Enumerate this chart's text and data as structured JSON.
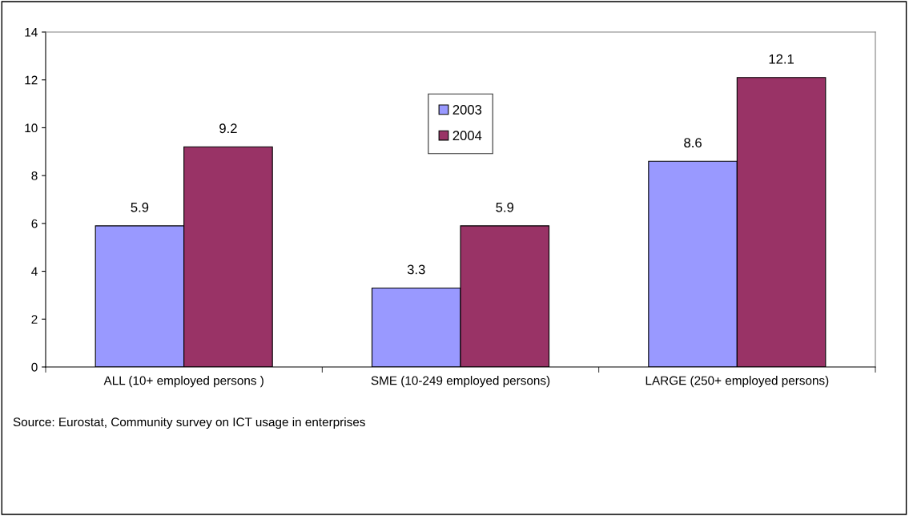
{
  "chart_data": {
    "type": "bar",
    "categories": [
      "ALL (10+ employed persons )",
      "SME (10-249 employed persons)",
      "LARGE (250+ employed persons)"
    ],
    "series": [
      {
        "name": "2003",
        "color": "#9999ff",
        "values": [
          5.9,
          3.3,
          8.6
        ]
      },
      {
        "name": "2004",
        "color": "#993366",
        "values": [
          9.2,
          5.9,
          12.1
        ]
      }
    ],
    "ylim": [
      0,
      14
    ],
    "yticks": [
      0,
      2,
      4,
      6,
      8,
      10,
      12,
      14
    ],
    "data_labels": true,
    "grid": false,
    "legend": "top",
    "annotations": [
      "Source: Eurostat, Community survey on ICT usage in enterprises"
    ]
  }
}
